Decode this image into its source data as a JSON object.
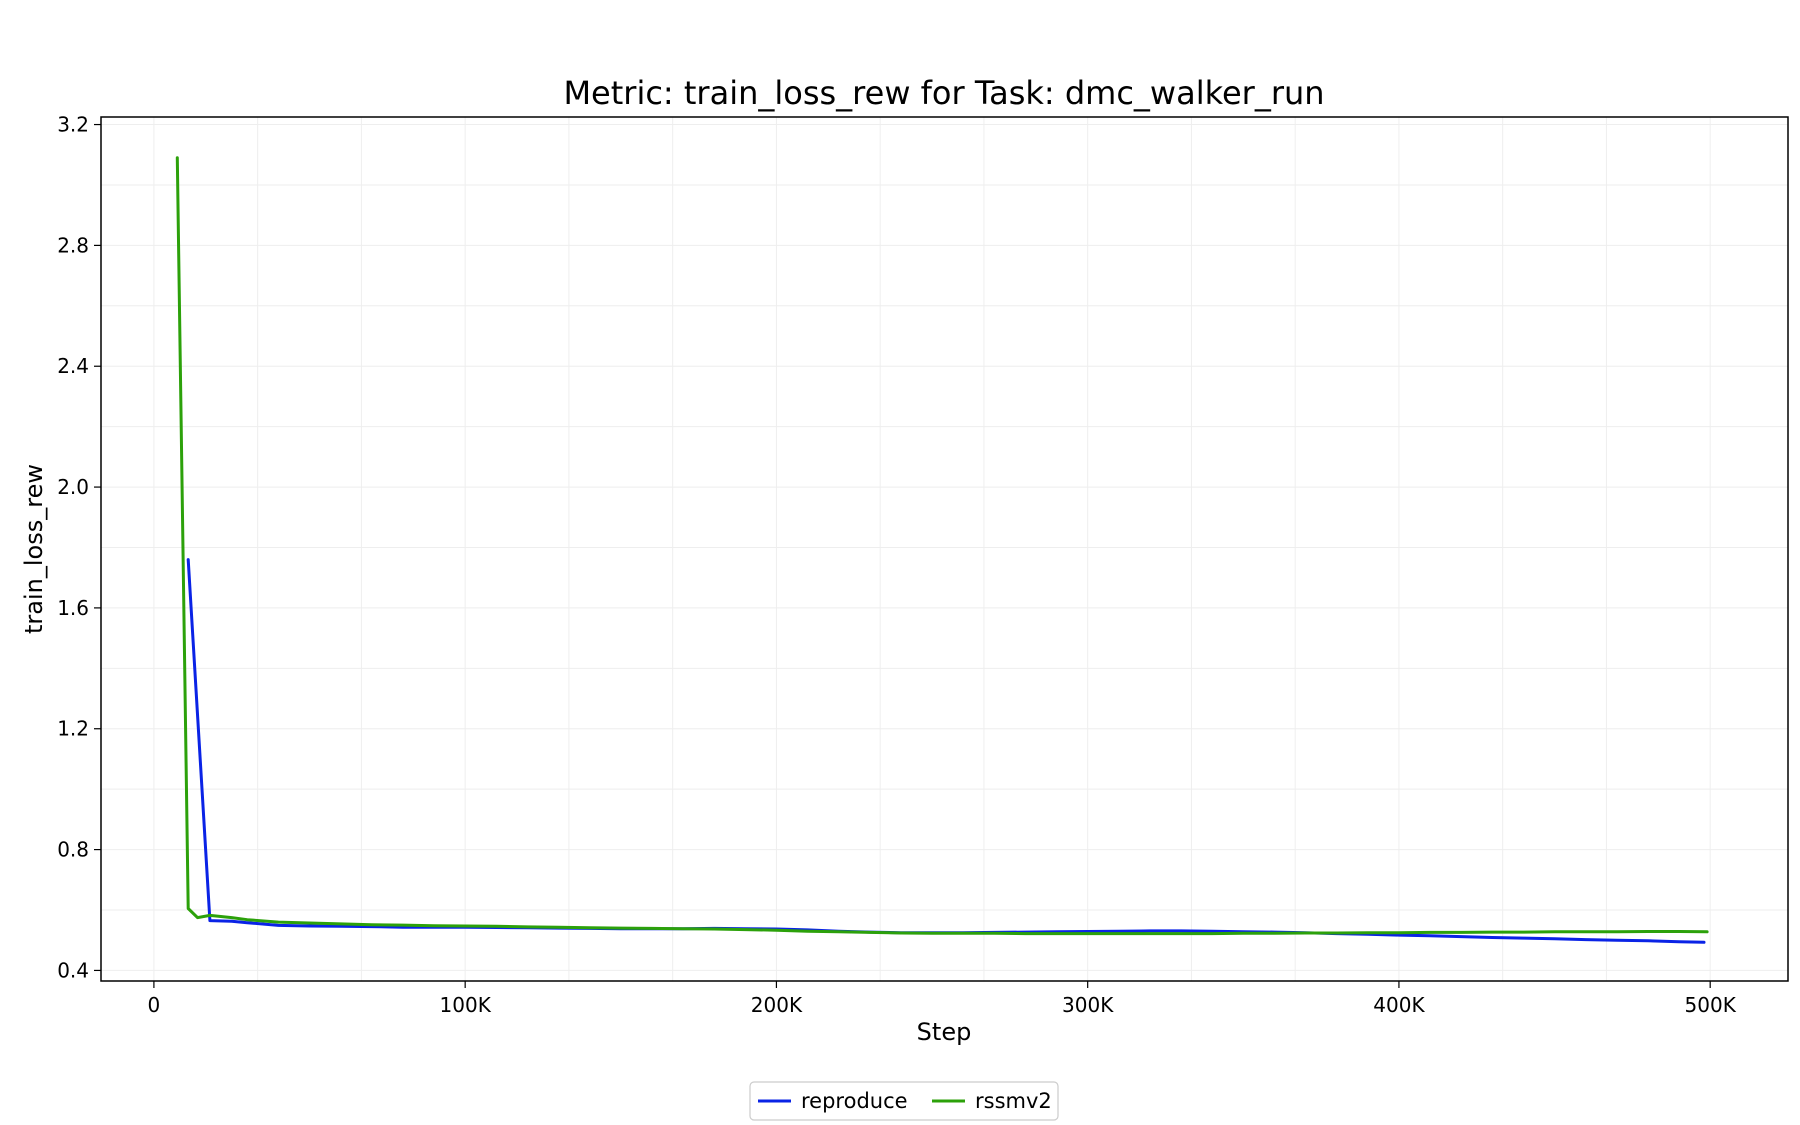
{
  "chart_data": {
    "type": "line",
    "title": "Metric: train_loss_rew for Task: dmc_walker_run",
    "xlabel": "Step",
    "ylabel": "train_loss_rew",
    "xlim": [
      -17000,
      525000
    ],
    "ylim": [
      0.365,
      3.225
    ],
    "xticks": [
      0,
      100000,
      200000,
      300000,
      400000,
      500000
    ],
    "xtick_labels": [
      "0",
      "100K",
      "200K",
      "300K",
      "400K",
      "500K"
    ],
    "yticks": [
      0.4,
      0.8,
      1.2,
      1.6,
      2.0,
      2.4,
      2.8,
      3.2
    ],
    "ytick_labels": [
      "0.4",
      "0.8",
      "1.2",
      "1.6",
      "2.0",
      "2.4",
      "2.8",
      "3.2"
    ],
    "grid": true,
    "legend_position": "below-center",
    "series": [
      {
        "name": "reproduce",
        "color": "#0a23e6",
        "x": [
          11000,
          18000,
          25000,
          30000,
          40000,
          50000,
          60000,
          70000,
          80000,
          90000,
          100000,
          110000,
          120000,
          130000,
          140000,
          150000,
          160000,
          170000,
          180000,
          190000,
          200000,
          210000,
          220000,
          230000,
          240000,
          250000,
          260000,
          270000,
          280000,
          290000,
          300000,
          310000,
          320000,
          330000,
          340000,
          350000,
          360000,
          370000,
          380000,
          390000,
          400000,
          410000,
          420000,
          430000,
          440000,
          450000,
          460000,
          470000,
          480000,
          490000,
          498000
        ],
        "y": [
          1.76,
          0.565,
          0.563,
          0.558,
          0.549,
          0.547,
          0.546,
          0.545,
          0.543,
          0.543,
          0.543,
          0.542,
          0.541,
          0.54,
          0.539,
          0.538,
          0.538,
          0.538,
          0.539,
          0.538,
          0.537,
          0.534,
          0.53,
          0.527,
          0.525,
          0.525,
          0.525,
          0.526,
          0.527,
          0.528,
          0.529,
          0.53,
          0.531,
          0.531,
          0.53,
          0.528,
          0.527,
          0.525,
          0.522,
          0.52,
          0.517,
          0.515,
          0.512,
          0.509,
          0.507,
          0.505,
          0.502,
          0.5,
          0.498,
          0.495,
          0.493
        ]
      },
      {
        "name": "rssmv2",
        "color": "#2ca10a",
        "x": [
          7500,
          11000,
          14000,
          18000,
          25000,
          30000,
          40000,
          50000,
          60000,
          70000,
          80000,
          90000,
          100000,
          110000,
          120000,
          130000,
          140000,
          150000,
          160000,
          170000,
          180000,
          190000,
          200000,
          210000,
          220000,
          230000,
          240000,
          250000,
          260000,
          270000,
          280000,
          290000,
          300000,
          310000,
          320000,
          330000,
          340000,
          350000,
          360000,
          370000,
          380000,
          390000,
          400000,
          410000,
          420000,
          430000,
          440000,
          450000,
          460000,
          470000,
          480000,
          490000,
          499000
        ],
        "y": [
          3.09,
          0.605,
          0.575,
          0.582,
          0.575,
          0.568,
          0.56,
          0.557,
          0.554,
          0.551,
          0.55,
          0.548,
          0.547,
          0.546,
          0.544,
          0.543,
          0.541,
          0.54,
          0.539,
          0.538,
          0.537,
          0.535,
          0.533,
          0.53,
          0.528,
          0.526,
          0.524,
          0.523,
          0.523,
          0.523,
          0.522,
          0.522,
          0.522,
          0.522,
          0.522,
          0.522,
          0.522,
          0.523,
          0.523,
          0.524,
          0.524,
          0.525,
          0.525,
          0.526,
          0.526,
          0.527,
          0.527,
          0.528,
          0.528,
          0.528,
          0.529,
          0.529,
          0.528
        ]
      }
    ]
  }
}
